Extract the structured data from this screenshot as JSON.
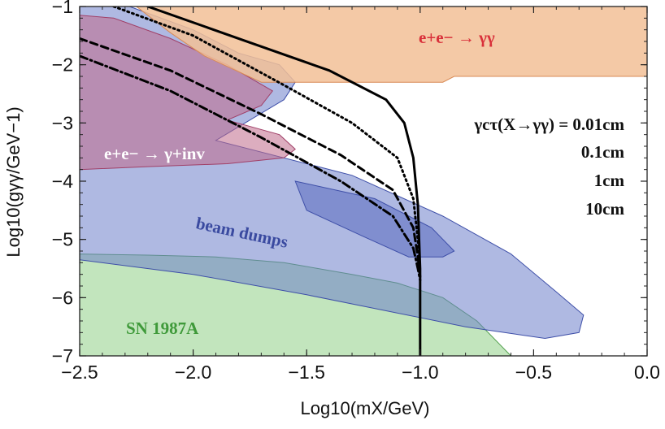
{
  "chart_data": {
    "type": "area",
    "xlabel": "Log10(mX/GeV)",
    "ylabel": "Log10(gγγ/GeV−1)",
    "xlim": [
      -2.5,
      0.0
    ],
    "ylim": [
      -7,
      -1
    ],
    "xticks": [
      {
        "value": -2.5,
        "label": "−2.5"
      },
      {
        "value": -2.0,
        "label": "−2.0"
      },
      {
        "value": -1.5,
        "label": "−1.5"
      },
      {
        "value": -1.0,
        "label": "−1.0"
      },
      {
        "value": -0.5,
        "label": "−0.5"
      },
      {
        "value": 0.0,
        "label": "0.0"
      }
    ],
    "yticks": [
      {
        "value": -1,
        "label": "−1"
      },
      {
        "value": -2,
        "label": "−2"
      },
      {
        "value": -3,
        "label": "−3"
      },
      {
        "value": -4,
        "label": "−4"
      },
      {
        "value": -5,
        "label": "−5"
      },
      {
        "value": -6,
        "label": "−6"
      },
      {
        "value": -7,
        "label": "−7"
      }
    ],
    "grid": false,
    "regions": [
      {
        "label": "SN 1987A",
        "color": "#8fcf86",
        "edge": "#4f9e4a",
        "label_color": "#3f9a3a",
        "points": [
          [
            -2.5,
            -5.25
          ],
          [
            -2.2,
            -5.27
          ],
          [
            -1.9,
            -5.3
          ],
          [
            -1.6,
            -5.4
          ],
          [
            -1.3,
            -5.6
          ],
          [
            -1.1,
            -5.75
          ],
          [
            -0.9,
            -6.0
          ],
          [
            -0.75,
            -6.4
          ],
          [
            -0.65,
            -6.8
          ],
          [
            -0.6,
            -7.0
          ],
          [
            -2.5,
            -7.0
          ]
        ]
      },
      {
        "label": "beam dumps",
        "color": "#6e7fcb",
        "edge": "#3e4fa8",
        "label_color": "#3a4aa0",
        "points": [
          [
            -2.5,
            -1.0
          ],
          [
            -2.28,
            -1.0
          ],
          [
            -2.0,
            -1.4
          ],
          [
            -1.8,
            -1.8
          ],
          [
            -1.62,
            -2.0
          ],
          [
            -1.55,
            -2.3
          ],
          [
            -1.6,
            -2.6
          ],
          [
            -1.9,
            -3.3
          ],
          [
            -1.3,
            -3.9
          ],
          [
            -0.9,
            -4.6
          ],
          [
            -0.6,
            -5.25
          ],
          [
            -0.4,
            -5.9
          ],
          [
            -0.28,
            -6.3
          ],
          [
            -0.3,
            -6.6
          ],
          [
            -0.45,
            -6.7
          ],
          [
            -0.8,
            -6.5
          ],
          [
            -1.5,
            -5.95
          ],
          [
            -2.0,
            -5.6
          ],
          [
            -2.5,
            -5.35
          ]
        ]
      },
      {
        "label": "beam dumps (inner)",
        "color": "#5a6bc0",
        "edge": "#3e4fa8",
        "points": [
          [
            -1.55,
            -4.0
          ],
          [
            -1.2,
            -4.3
          ],
          [
            -0.95,
            -4.8
          ],
          [
            -0.85,
            -5.2
          ],
          [
            -0.9,
            -5.3
          ],
          [
            -1.05,
            -5.3
          ],
          [
            -1.25,
            -4.95
          ],
          [
            -1.5,
            -4.5
          ]
        ]
      },
      {
        "label": "e+e− → γ+inv",
        "color": "#c06a8a",
        "edge": "#a04068",
        "label_color": "#ffffff",
        "points": [
          [
            -2.5,
            -1.15
          ],
          [
            -2.35,
            -1.2
          ],
          [
            -2.1,
            -1.55
          ],
          [
            -1.85,
            -2.0
          ],
          [
            -1.65,
            -2.45
          ],
          [
            -1.7,
            -2.7
          ],
          [
            -1.85,
            -2.95
          ],
          [
            -1.62,
            -3.2
          ],
          [
            -1.55,
            -3.45
          ],
          [
            -1.6,
            -3.6
          ],
          [
            -1.85,
            -3.7
          ],
          [
            -2.2,
            -3.75
          ],
          [
            -2.5,
            -3.8
          ]
        ]
      },
      {
        "label": "e+e− → γγ",
        "color": "#f2bf96",
        "edge": "#d98a55",
        "label_color": "#d9303a",
        "points": [
          [
            -2.25,
            -1.0
          ],
          [
            0.0,
            -1.0
          ],
          [
            0.0,
            -2.2
          ],
          [
            -0.85,
            -2.2
          ],
          [
            -0.9,
            -2.3
          ],
          [
            -1.7,
            -2.3
          ],
          [
            -1.95,
            -1.85
          ],
          [
            -2.1,
            -1.45
          ]
        ]
      }
    ],
    "series": [
      {
        "name": "γcτ(X→γγ) = 0.01cm",
        "style": "solid",
        "points": [
          [
            -2.2,
            -1.0
          ],
          [
            -1.8,
            -1.55
          ],
          [
            -1.4,
            -2.1
          ],
          [
            -1.15,
            -2.6
          ],
          [
            -1.07,
            -3.0
          ],
          [
            -1.03,
            -3.6
          ],
          [
            -1.01,
            -4.4
          ],
          [
            -1.0,
            -5.5
          ],
          [
            -1.0,
            -7.0
          ]
        ]
      },
      {
        "name": "0.1cm",
        "style": "dotted",
        "points": [
          [
            -2.35,
            -1.0
          ],
          [
            -2.0,
            -1.5
          ],
          [
            -1.6,
            -2.35
          ],
          [
            -1.3,
            -3.0
          ],
          [
            -1.1,
            -3.6
          ],
          [
            -1.03,
            -4.3
          ],
          [
            -1.01,
            -5.0
          ],
          [
            -1.0,
            -5.65
          ]
        ]
      },
      {
        "name": "1cm",
        "style": "dashed",
        "points": [
          [
            -2.5,
            -1.55
          ],
          [
            -2.1,
            -2.1
          ],
          [
            -1.7,
            -2.85
          ],
          [
            -1.35,
            -3.55
          ],
          [
            -1.12,
            -4.15
          ],
          [
            -1.03,
            -4.8
          ],
          [
            -1.01,
            -5.3
          ],
          [
            -1.0,
            -5.65
          ]
        ]
      },
      {
        "name": "10cm",
        "style": "dashdot",
        "points": [
          [
            -2.5,
            -1.85
          ],
          [
            -2.1,
            -2.45
          ],
          [
            -1.7,
            -3.25
          ],
          [
            -1.35,
            -4.0
          ],
          [
            -1.12,
            -4.6
          ],
          [
            -1.03,
            -5.15
          ],
          [
            -1.01,
            -5.5
          ],
          [
            -1.0,
            -5.7
          ]
        ]
      }
    ],
    "annotations": {
      "lifetime_prefix": "γcτ(X→γγ) = 0.01cm",
      "lifetime_1": "0.1cm",
      "lifetime_2": "1cm",
      "lifetime_3": "10cm"
    }
  }
}
